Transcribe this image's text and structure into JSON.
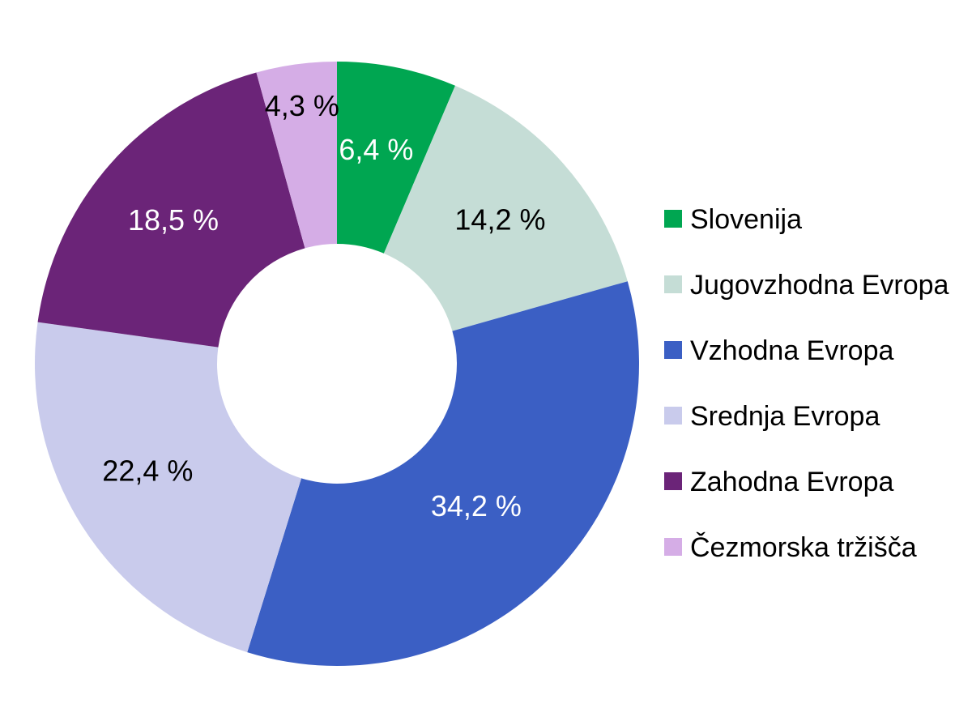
{
  "chart_data": {
    "type": "pie",
    "variant": "donut",
    "legend_position": "right",
    "slices": [
      {
        "name": "Slovenija",
        "value": 6.4,
        "label": "6,4 %",
        "color": "#00a651",
        "label_color": "#ffffff"
      },
      {
        "name": "Jugovzhodna Evropa",
        "value": 14.2,
        "label": "14,2 %",
        "color": "#c5ddd6",
        "label_color": "#000000"
      },
      {
        "name": "Vzhodna Evropa",
        "value": 34.2,
        "label": "34,2 %",
        "color": "#3b5fc4",
        "label_color": "#ffffff"
      },
      {
        "name": "Srednja Evropa",
        "value": 22.4,
        "label": "22,4 %",
        "color": "#c9cbec",
        "label_color": "#000000"
      },
      {
        "name": "Zahodna Evropa",
        "value": 18.5,
        "label": "18,5 %",
        "color": "#6b2478",
        "label_color": "#ffffff"
      },
      {
        "name": "Čezmorska tržišča",
        "value": 4.3,
        "label": "4,3 %",
        "color": "#d5ade6",
        "label_color": "#000000"
      }
    ]
  }
}
